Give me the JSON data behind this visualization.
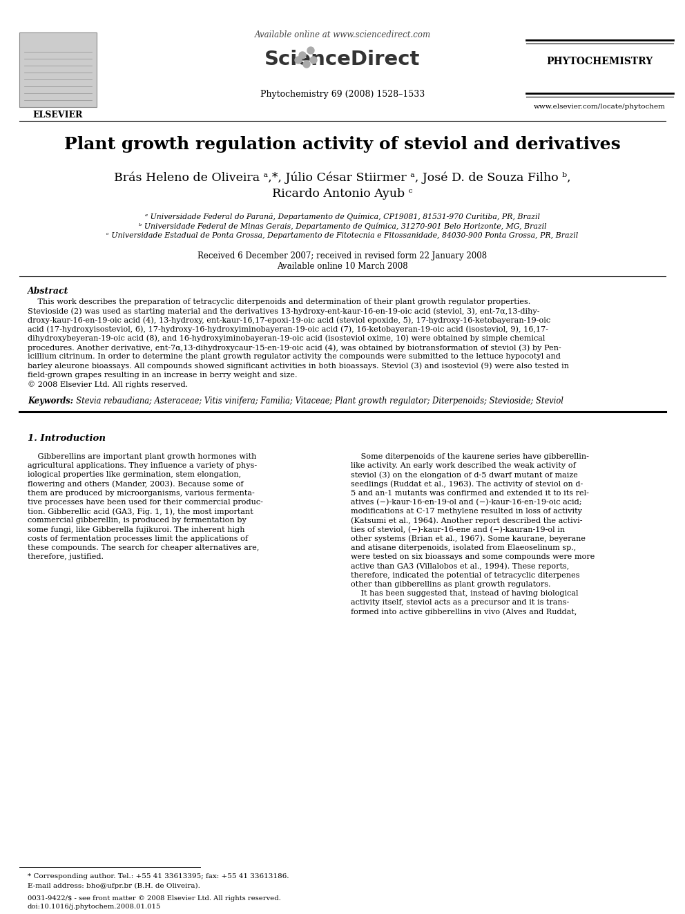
{
  "title": "Plant growth regulation activity of steviol and derivatives",
  "authors_line1": "Brás Heleno de Oliveira ᵃ,*, Júlio César Stiirmer ᵃ, José D. de Souza Filho ᵇ,",
  "authors_line2": "Ricardo Antonio Ayub ᶜ",
  "affil_a": "ᵃ Universidade Federal do Paraná, Departamento de Química, CP19081, 81531-970 Curitiba, PR, Brazil",
  "affil_b": "ᵇ Universidade Federal de Minas Gerais, Departamento de Química, 31270-901 Belo Horizonte, MG, Brazil",
  "affil_c": "ᶜ Universidade Estadual de Ponta Grossa, Departamento de Fitotecnia e Fitossanidade, 84030-900 Ponta Grossa, PR, Brazil",
  "dates": "Received 6 December 2007; received in revised form 22 January 2008",
  "available": "Available online 10 March 2008",
  "header_available": "Available online at www.sciencedirect.com",
  "journal_ref": "Phytochemistry 69 (2008) 1528–1533",
  "journal_name": "PHYTOCHEMISTRY",
  "elsevier_text": "ELSEVIER",
  "website": "www.elsevier.com/locate/phytochem",
  "abstract_title": "Abstract",
  "keywords_label": "Keywords:",
  "keywords_text": "  Stevia rebaudiana; Asteraceae; Vitis vinifera; Familia; Vitaceae; Plant growth regulator; Diterpenoids; Stevioside; Steviol",
  "section1_title": "1. Introduction",
  "footnote_corresponding": "* Corresponding author. Tel.: +55 41 33613395; fax: +55 41 33613186.",
  "footnote_email": "E-mail address: bho@ufpr.br (B.H. de Oliveira).",
  "footnote_issn": "0031-9422/$ - see front matter © 2008 Elsevier Ltd. All rights reserved.",
  "footnote_doi": "doi:10.1016/j.phytochem.2008.01.015",
  "background_color": "#ffffff",
  "text_color": "#000000",
  "line_color": "#000000",
  "abstract_lines": [
    "    This work describes the preparation of tetracyclic diterpenoids and determination of their plant growth regulator properties.",
    "Stevioside (2) was used as starting material and the derivatives 13-hydroxy-ent-kaur-16-en-19-oic acid (steviol, 3), ent-7α,13-dihy-",
    "droxy-kaur-16-en-19-oic acid (4), 13-hydroxy, ent-kaur-16,17-epoxi-19-oic acid (steviol epoxide, 5), 17-hydroxy-16-ketobayeran-19-oic",
    "acid (17-hydroxyisosteviol, 6), 17-hydroxy-16-hydroxyiminobayeran-19-oic acid (7), 16-ketobayeran-19-oic acid (isosteviol, 9), 16,17-",
    "dihydroxybeyeran-19-oic acid (8), and 16-hydroxyiminobayeran-19-oic acid (isosteviol oxime, 10) were obtained by simple chemical",
    "procedures. Another derivative, ent-7α,13-dihydroxycaur-15-en-19-oic acid (4), was obtained by biotransformation of steviol (3) by Pen-",
    "icillium citrinum. In order to determine the plant growth regulator activity the compounds were submitted to the lettuce hypocotyl and",
    "barley aleurone bioassays. All compounds showed significant activities in both bioassays. Steviol (3) and isosteviol (9) were also tested in",
    "field-grown grapes resulting in an increase in berry weight and size.",
    "© 2008 Elsevier Ltd. All rights reserved."
  ],
  "left_lines": [
    "    Gibberellins are important plant growth hormones with",
    "agricultural applications. They influence a variety of phys-",
    "iological properties like germination, stem elongation,",
    "flowering and others (Mander, 2003). Because some of",
    "them are produced by microorganisms, various fermenta-",
    "tive processes have been used for their commercial produc-",
    "tion. Gibberellic acid (GA3, Fig. 1, 1), the most important",
    "commercial gibberellin, is produced by fermentation by",
    "some fungi, like Gibberella fujikuroi. The inherent high",
    "costs of fermentation processes limit the applications of",
    "these compounds. The search for cheaper alternatives are,",
    "therefore, justified."
  ],
  "right_lines": [
    "    Some diterpenoids of the kaurene series have gibberellin-",
    "like activity. An early work described the weak activity of",
    "steviol (3) on the elongation of d-5 dwarf mutant of maize",
    "seedlings (Ruddat et al., 1963). The activity of steviol on d-",
    "5 and an-1 mutants was confirmed and extended it to its rel-",
    "atives (−)-kaur-16-en-19-ol and (−)-kaur-16-en-19-oic acid;",
    "modifications at C-17 methylene resulted in loss of activity",
    "(Katsumi et al., 1964). Another report described the activi-",
    "ties of steviol, (−)-kaur-16-ene and (−)-kauran-19-ol in",
    "other systems (Brian et al., 1967). Some kaurane, beyerane",
    "and atisane diterpenoids, isolated from Elaeoselinum sp.,",
    "were tested on six bioassays and some compounds were more",
    "active than GA3 (Villalobos et al., 1994). These reports,",
    "therefore, indicated the potential of tetracyclic diterpenes",
    "other than gibberellins as plant growth regulators.",
    "    It has been suggested that, instead of having biological",
    "activity itself, steviol acts as a precursor and it is trans-",
    "formed into active gibberellins in vivo (Alves and Ruddat,"
  ]
}
